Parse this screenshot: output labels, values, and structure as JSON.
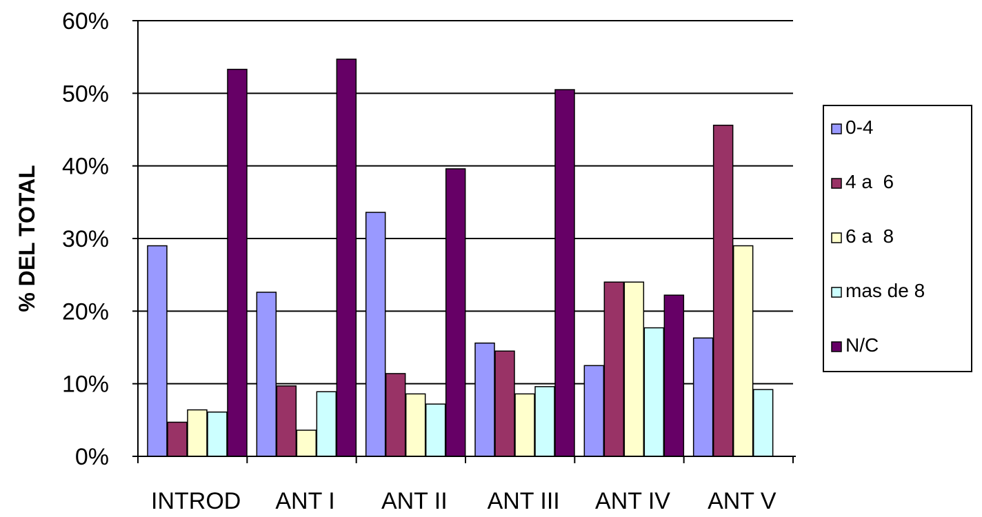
{
  "chart_data": {
    "type": "bar",
    "title": "",
    "xlabel": "",
    "ylabel": "% DEL TOTAL",
    "categories": [
      "INTROD",
      "ANT I",
      "ANT II",
      "ANT III",
      "ANT IV",
      "ANT V"
    ],
    "y_ticks": [
      "0%",
      "10%",
      "20%",
      "30%",
      "40%",
      "50%",
      "60%"
    ],
    "ylim": [
      0,
      60
    ],
    "grid": true,
    "legend_position": "right",
    "series": [
      {
        "name": "0-4",
        "color": "#9999FF",
        "values": [
          29.0,
          22.6,
          33.6,
          15.6,
          12.5,
          16.3
        ]
      },
      {
        "name": "4 a  6",
        "color": "#993366",
        "values": [
          4.7,
          9.7,
          11.4,
          14.5,
          24.0,
          45.6
        ]
      },
      {
        "name": "6 a  8",
        "color": "#FFFFCC",
        "values": [
          6.4,
          3.6,
          8.6,
          8.6,
          24.0,
          29.0
        ]
      },
      {
        "name": "mas de 8",
        "color": "#CCFFFF",
        "values": [
          6.1,
          8.9,
          7.2,
          9.6,
          17.7,
          9.2
        ]
      },
      {
        "name": "N/C",
        "color": "#660066",
        "values": [
          53.3,
          54.7,
          39.6,
          50.5,
          22.2,
          null
        ]
      }
    ]
  }
}
